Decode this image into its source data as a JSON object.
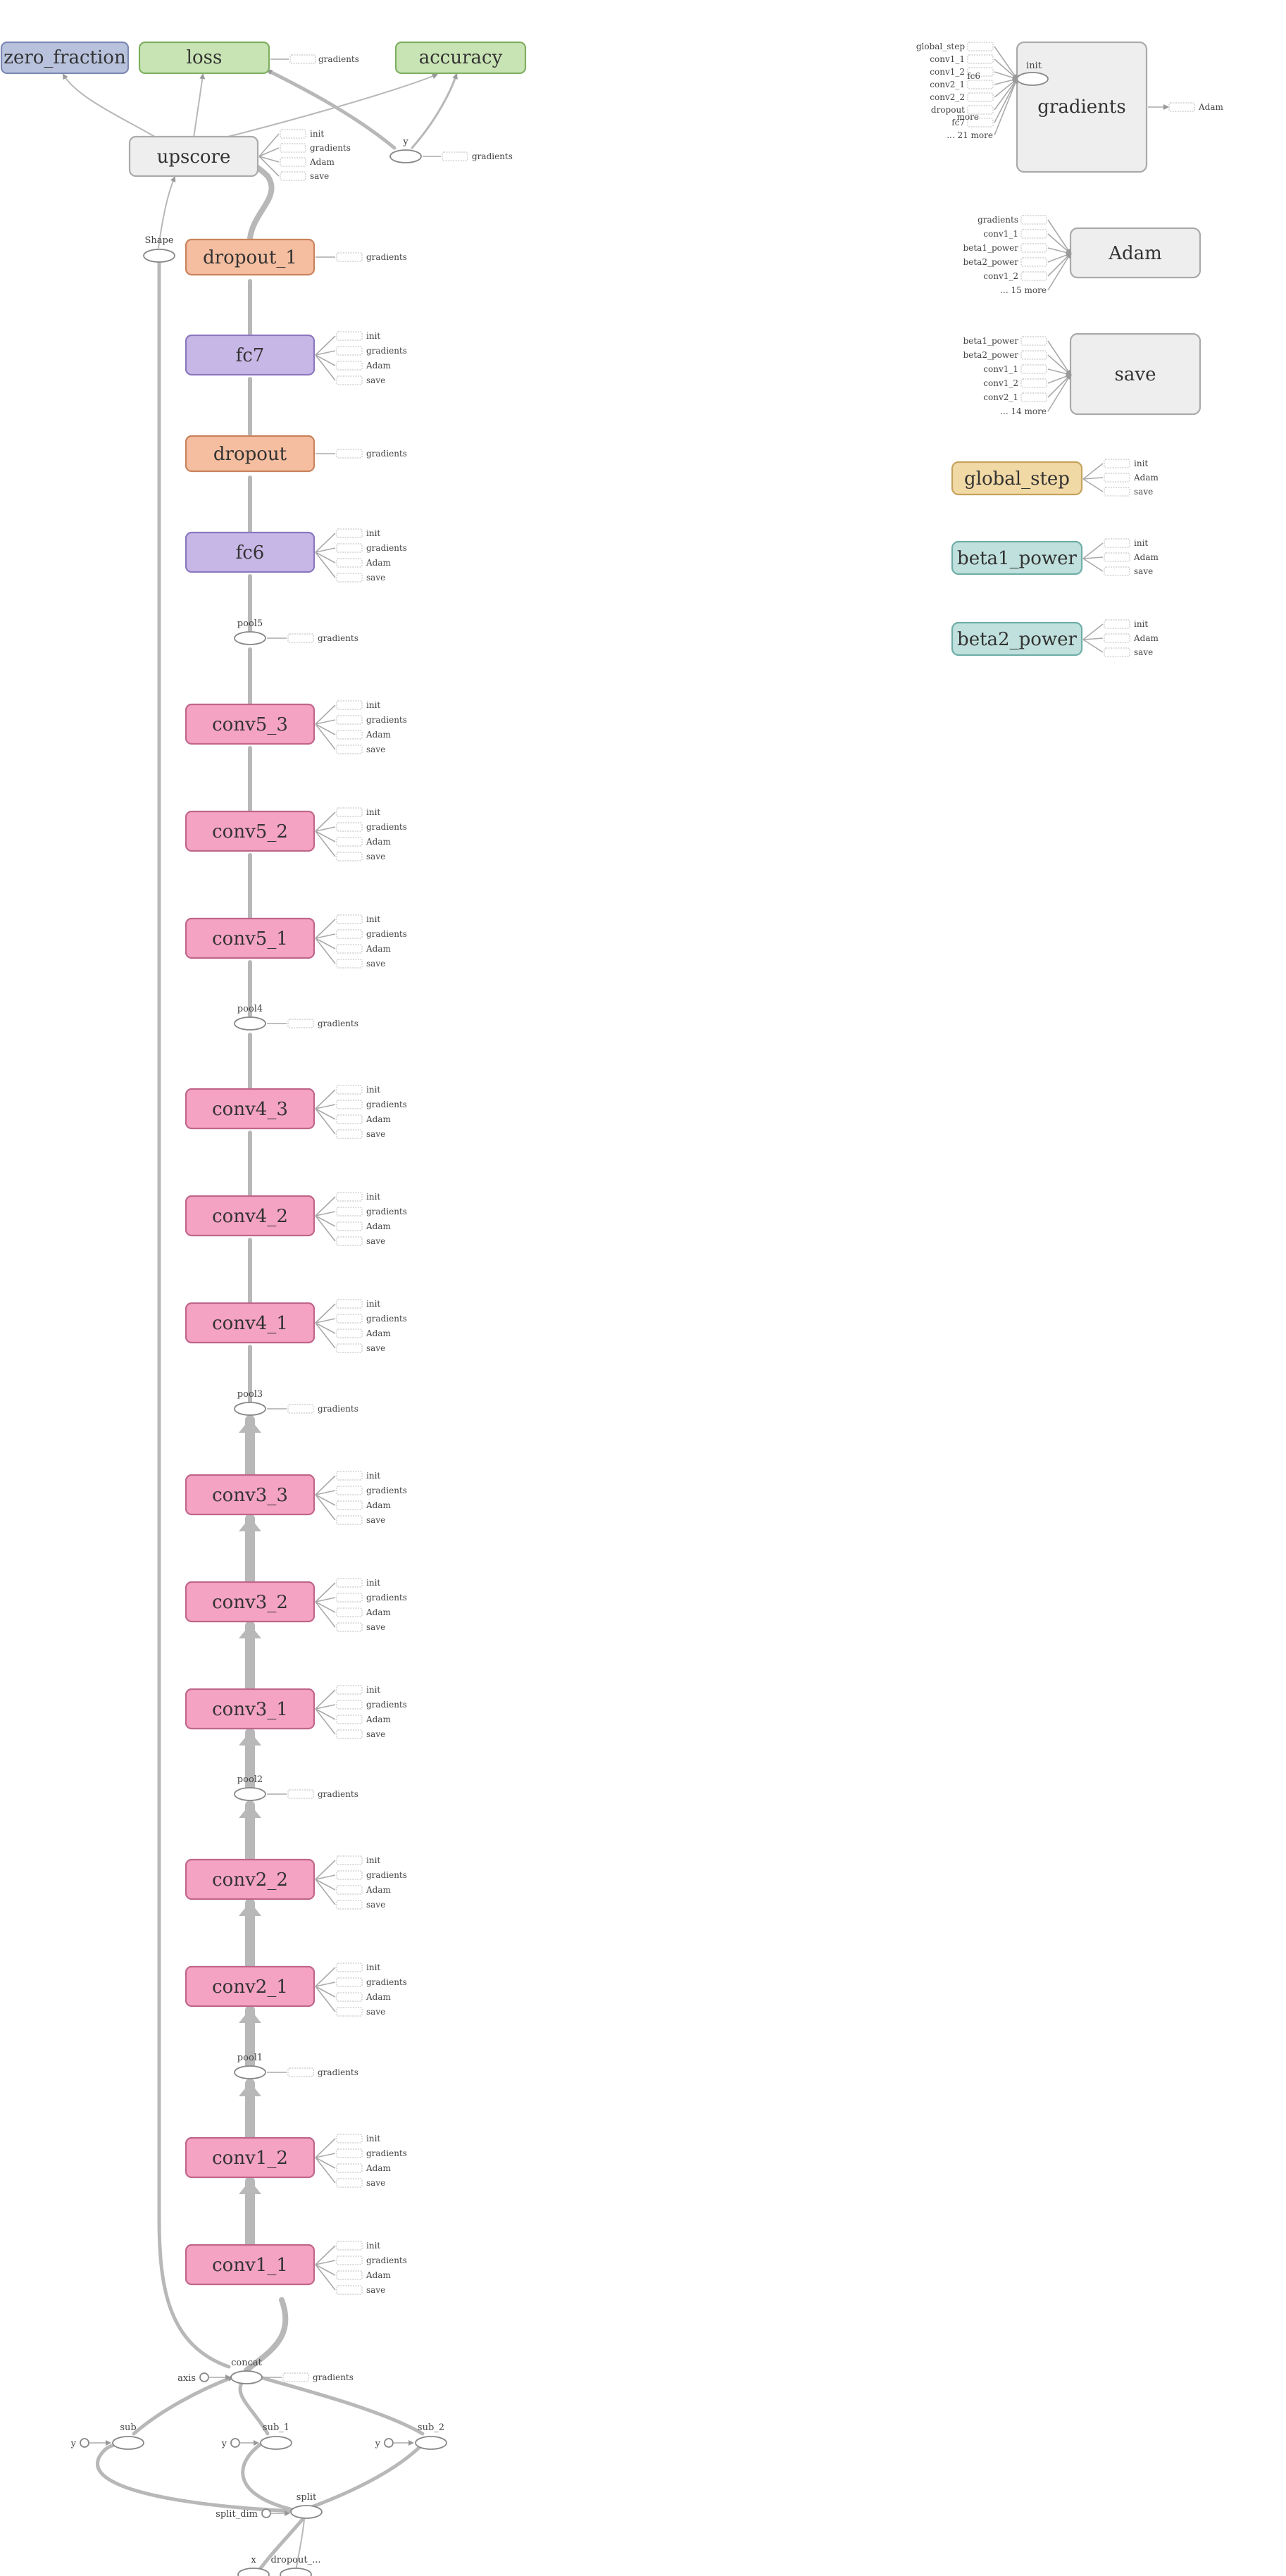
{
  "colors": {
    "conv": {
      "fill": "#f5a3c2",
      "stroke": "#c0668a"
    },
    "fc": {
      "fill": "#c7b7e6",
      "stroke": "#8b78bf"
    },
    "dropout": {
      "fill": "#f5bea0",
      "stroke": "#c9835d"
    },
    "metric_green": {
      "fill": "#c9e4b4",
      "stroke": "#7fb061"
    },
    "zero_fraction": {
      "fill": "#b8c2dd",
      "stroke": "#7d89b5"
    },
    "neutral": {
      "fill": "#eeeeee",
      "stroke": "#aaaaaa"
    },
    "global_step": {
      "fill": "#f1d9a6",
      "stroke": "#c6a35c"
    },
    "beta": {
      "fill": "#bfe0dc",
      "stroke": "#6faea7"
    },
    "edge": "#b8b8b8"
  },
  "top_nodes": {
    "zero_fraction": "zero_fraction",
    "loss": "loss",
    "accuracy": "accuracy",
    "upscore": "upscore",
    "shape": "Shape",
    "y": "y"
  },
  "aux_labels": {
    "init": "init",
    "gradients": "gradients",
    "adam": "Adam",
    "save": "save"
  },
  "trunk_layers": [
    {
      "name": "dropout_1",
      "kind": "dropout",
      "aux": [
        "gradients"
      ]
    },
    {
      "name": "fc7",
      "kind": "fc",
      "aux": [
        "init",
        "gradients",
        "Adam",
        "save"
      ]
    },
    {
      "name": "dropout",
      "kind": "dropout",
      "aux": [
        "gradients"
      ]
    },
    {
      "name": "fc6",
      "kind": "fc",
      "aux": [
        "init",
        "gradients",
        "Adam",
        "save"
      ]
    },
    {
      "name": "pool5",
      "kind": "pool",
      "aux": [
        "gradients"
      ]
    },
    {
      "name": "conv5_3",
      "kind": "conv",
      "aux": [
        "init",
        "gradients",
        "Adam",
        "save"
      ]
    },
    {
      "name": "conv5_2",
      "kind": "conv",
      "aux": [
        "init",
        "gradients",
        "Adam",
        "save"
      ]
    },
    {
      "name": "conv5_1",
      "kind": "conv",
      "aux": [
        "init",
        "gradients",
        "Adam",
        "save"
      ]
    },
    {
      "name": "pool4",
      "kind": "pool",
      "aux": [
        "gradients"
      ]
    },
    {
      "name": "conv4_3",
      "kind": "conv",
      "aux": [
        "init",
        "gradients",
        "Adam",
        "save"
      ]
    },
    {
      "name": "conv4_2",
      "kind": "conv",
      "aux": [
        "init",
        "gradients",
        "Adam",
        "save"
      ]
    },
    {
      "name": "conv4_1",
      "kind": "conv",
      "aux": [
        "init",
        "gradients",
        "Adam",
        "save"
      ]
    },
    {
      "name": "pool3",
      "kind": "pool",
      "aux": [
        "gradients"
      ]
    },
    {
      "name": "conv3_3",
      "kind": "conv",
      "aux": [
        "init",
        "gradients",
        "Adam",
        "save"
      ]
    },
    {
      "name": "conv3_2",
      "kind": "conv",
      "aux": [
        "init",
        "gradients",
        "Adam",
        "save"
      ]
    },
    {
      "name": "conv3_1",
      "kind": "conv",
      "aux": [
        "init",
        "gradients",
        "Adam",
        "save"
      ]
    },
    {
      "name": "pool2",
      "kind": "pool",
      "aux": [
        "gradients"
      ]
    },
    {
      "name": "conv2_2",
      "kind": "conv",
      "aux": [
        "init",
        "gradients",
        "Adam",
        "save"
      ]
    },
    {
      "name": "conv2_1",
      "kind": "conv",
      "aux": [
        "init",
        "gradients",
        "Adam",
        "save"
      ]
    },
    {
      "name": "pool1",
      "kind": "pool",
      "aux": [
        "gradients"
      ]
    },
    {
      "name": "conv1_2",
      "kind": "conv",
      "aux": [
        "init",
        "gradients",
        "Adam",
        "save"
      ]
    },
    {
      "name": "conv1_1",
      "kind": "conv",
      "aux": [
        "init",
        "gradients",
        "Adam",
        "save"
      ]
    }
  ],
  "preprocess": {
    "concat": "concat",
    "axis": "axis",
    "concat_aux": "gradients",
    "sub": "sub",
    "sub_1": "sub_1",
    "sub_2": "sub_2",
    "y": "y",
    "split": "split",
    "split_dim": "split_dim",
    "x": "x",
    "dropout_input": "dropout_..."
  },
  "gradients_group": {
    "title": "gradients",
    "init": "init",
    "inputs": [
      "global_step",
      "conv1_1",
      "conv1_2",
      "conv2_1",
      "conv2_2",
      "dropout",
      "fc7"
    ],
    "more": "... 21 more",
    "extra_overlap": [
      "fc6",
      "more"
    ],
    "output": "Adam"
  },
  "adam_group": {
    "title": "Adam",
    "inputs": [
      "gradients",
      "conv1_1",
      "beta1_power",
      "beta2_power",
      "conv1_2"
    ],
    "more": "... 15 more"
  },
  "save_group": {
    "title": "save",
    "inputs": [
      "beta1_power",
      "beta2_power",
      "conv1_1",
      "conv1_2",
      "conv2_1"
    ],
    "more": "... 14 more"
  },
  "variables": [
    {
      "name": "global_step",
      "kind": "global_step",
      "aux": [
        "init",
        "Adam",
        "save"
      ]
    },
    {
      "name": "beta1_power",
      "kind": "beta",
      "aux": [
        "init",
        "Adam",
        "save"
      ]
    },
    {
      "name": "beta2_power",
      "kind": "beta",
      "aux": [
        "init",
        "Adam",
        "save"
      ]
    }
  ]
}
